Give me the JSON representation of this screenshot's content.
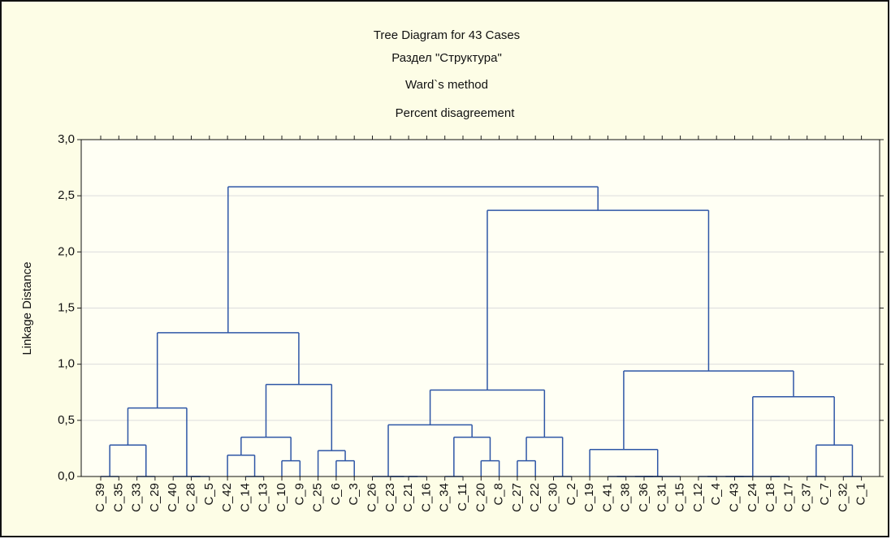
{
  "chart_data": {
    "type": "dendrogram",
    "title": "Tree Diagram for 43 Cases",
    "subtitle": [
      "Раздел \"Структура\"",
      "Ward`s method",
      "Percent disagreement"
    ],
    "ylabel": "Linkage Distance",
    "color": "#2e56a6",
    "grid": true,
    "ylim": [
      0,
      3
    ],
    "yticks": [
      {
        "value": 0,
        "label": "0,0"
      },
      {
        "value": 0.5,
        "label": "0,5"
      },
      {
        "value": 1,
        "label": "1,0"
      },
      {
        "value": 1.5,
        "label": "1,5"
      },
      {
        "value": 2,
        "label": "2,0"
      },
      {
        "value": 2.5,
        "label": "2,5"
      },
      {
        "value": 3,
        "label": "3,0"
      }
    ],
    "tree": {
      "height": 2.58,
      "children": [
        {
          "height": 1.28,
          "children": [
            {
              "height": 0.61,
              "children": [
                {
                  "height": 0.28,
                  "children": [
                    {
                      "height": 0,
                      "children": [
                        "C_39",
                        "C_35"
                      ]
                    },
                    {
                      "height": 0,
                      "children": [
                        "C_33",
                        "C_29"
                      ]
                    }
                  ]
                },
                {
                  "height": 0,
                  "children": [
                    "C_40",
                    {
                      "height": 0,
                      "children": [
                        "C_28",
                        "C_5"
                      ]
                    }
                  ]
                }
              ]
            },
            {
              "height": 0.82,
              "children": [
                {
                  "height": 0.35,
                  "children": [
                    {
                      "height": 0.19,
                      "children": [
                        "C_42",
                        {
                          "height": 0,
                          "children": [
                            "C_14",
                            "C_13"
                          ]
                        }
                      ]
                    },
                    {
                      "height": 0.14,
                      "children": [
                        "C_10",
                        "C_9"
                      ]
                    }
                  ]
                },
                {
                  "height": 0.23,
                  "children": [
                    "C_25",
                    {
                      "height": 0.14,
                      "children": [
                        "C_6",
                        "C_3"
                      ]
                    }
                  ]
                }
              ]
            }
          ]
        },
        {
          "height": 2.37,
          "children": [
            {
              "height": 0.77,
              "children": [
                {
                  "height": 0.46,
                  "children": [
                    {
                      "height": 0,
                      "children": [
                        "C_26",
                        {
                          "height": 0,
                          "children": [
                            "C_23",
                            {
                              "height": 0,
                              "children": [
                                "C_21",
                                "C_16"
                              ]
                            }
                          ]
                        }
                      ]
                    },
                    {
                      "height": 0.35,
                      "children": [
                        {
                          "height": 0,
                          "children": [
                            "C_34",
                            "C_11"
                          ]
                        },
                        {
                          "height": 0.14,
                          "children": [
                            "C_20",
                            "C_8"
                          ]
                        }
                      ]
                    }
                  ]
                },
                {
                  "height": 0.35,
                  "children": [
                    {
                      "height": 0.14,
                      "children": [
                        "C_27",
                        "C_22"
                      ]
                    },
                    {
                      "height": 0,
                      "children": [
                        "C_30",
                        "C_2"
                      ]
                    }
                  ]
                }
              ]
            },
            {
              "height": 0.94,
              "children": [
                {
                  "height": 0.24,
                  "children": [
                    "C_19",
                    {
                      "height": 0,
                      "children": [
                        {
                          "height": 0,
                          "children": [
                            {
                              "height": 0,
                              "children": [
                                "C_41",
                                "C_38"
                              ]
                            },
                            {
                              "height": 0,
                              "children": [
                                "C_36",
                                "C_31"
                              ]
                            }
                          ]
                        },
                        "C_15"
                      ]
                    }
                  ]
                },
                {
                  "height": 0.71,
                  "children": [
                    {
                      "height": 0,
                      "children": [
                        {
                          "height": 0,
                          "children": [
                            {
                              "height": 0,
                              "children": [
                                "C_12",
                                "C_4"
                              ]
                            },
                            {
                              "height": 0,
                              "children": [
                                "C_43",
                                "C_24"
                              ]
                            }
                          ]
                        },
                        {
                          "height": 0,
                          "children": [
                            "C_18",
                            "C_17"
                          ]
                        }
                      ]
                    },
                    {
                      "height": 0.28,
                      "children": [
                        {
                          "height": 0,
                          "children": [
                            "C_37",
                            "C_7"
                          ]
                        },
                        {
                          "height": 0,
                          "children": [
                            "C_32",
                            "C_1"
                          ]
                        }
                      ]
                    }
                  ]
                }
              ]
            }
          ]
        }
      ]
    }
  }
}
